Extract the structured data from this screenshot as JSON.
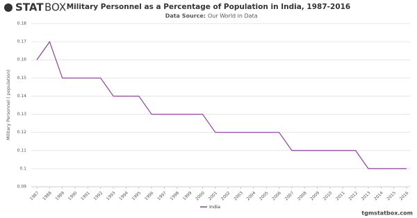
{
  "branding": {
    "logo_bold": "STAT",
    "logo_light": "BOX",
    "website": "tgmstatbox.com"
  },
  "chart_data": {
    "type": "line",
    "title": "Military Personnel as a Percentage of Population in India, 1987-2016",
    "source_label": "Data Source:",
    "source": "Our World in Data",
    "y_label": "Military Personnel ( population)",
    "x": [
      1987,
      1988,
      1989,
      1990,
      1991,
      1992,
      1993,
      1994,
      1995,
      1996,
      1997,
      1998,
      1999,
      2000,
      2001,
      2002,
      2003,
      2004,
      2005,
      2006,
      2007,
      2008,
      2009,
      2010,
      2011,
      2012,
      2013,
      2014,
      2015,
      2016
    ],
    "xlim": [
      1987,
      2016
    ],
    "series": [
      {
        "name": "India",
        "color": "#8e3f9e",
        "values": [
          0.16,
          0.17,
          0.15,
          0.15,
          0.15,
          0.15,
          0.14,
          0.14,
          0.14,
          0.13,
          0.13,
          0.13,
          0.13,
          0.13,
          0.12,
          0.12,
          0.12,
          0.12,
          0.12,
          0.12,
          0.11,
          0.11,
          0.11,
          0.11,
          0.11,
          0.11,
          0.1,
          0.1,
          0.1,
          0.1
        ]
      }
    ],
    "ylim": [
      0.09,
      0.18
    ],
    "yticks": [
      0.09,
      0.1,
      0.11,
      0.12,
      0.13,
      0.14,
      0.15,
      0.16,
      0.17,
      0.18
    ],
    "grid": true,
    "legend": "bottom"
  }
}
